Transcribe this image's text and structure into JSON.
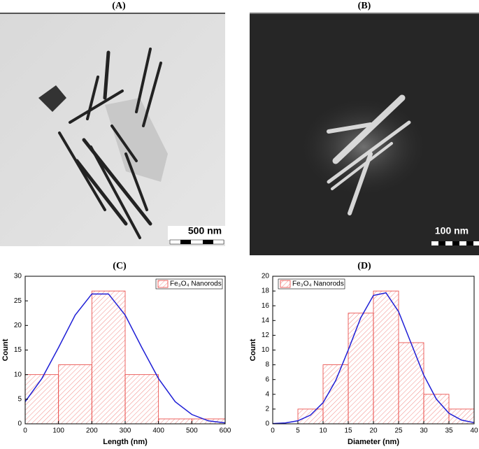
{
  "panels": [
    {
      "title": "(A)",
      "scale_bar": "500 nm"
    },
    {
      "title": "(B)",
      "scale_bar": "100 nm"
    }
  ],
  "chart_data": [
    {
      "type": "histogram",
      "title": "(C)",
      "xlabel": "Length (nm)",
      "ylabel": "Count",
      "bins": [
        0,
        100,
        200,
        300,
        400,
        500,
        600
      ],
      "series": [
        {
          "name": "Fe₃O₄ Nanorods",
          "color": "#e8403c",
          "values": [
            10,
            12,
            27,
            10,
            1,
            1
          ]
        }
      ],
      "fit": {
        "color": "#1f1fd6",
        "x": [
          0,
          50,
          100,
          150,
          200,
          250,
          300,
          350,
          400,
          450,
          500,
          550,
          600
        ],
        "values": [
          4.5,
          9.2,
          15.5,
          22.1,
          26.4,
          26.4,
          22.1,
          15.5,
          9.2,
          4.5,
          1.9,
          0.6,
          0.2
        ]
      },
      "xlim": [
        0,
        600
      ],
      "ylim": [
        0,
        30
      ],
      "xticks": [
        0,
        100,
        200,
        300,
        400,
        500,
        600
      ],
      "yticks": [
        0,
        5,
        10,
        15,
        20,
        25,
        30
      ],
      "legend": "upper right"
    },
    {
      "type": "histogram",
      "title": "(D)",
      "xlabel": "Diameter (nm)",
      "ylabel": "Count",
      "bins": [
        0,
        5,
        10,
        15,
        20,
        25,
        30,
        35,
        40
      ],
      "series": [
        {
          "name": "Fe₃O₄ Nanorods",
          "color": "#e8403c",
          "values": [
            0,
            2,
            8,
            15,
            18,
            11,
            4,
            2
          ]
        }
      ],
      "fit": {
        "color": "#1f1fd6",
        "x": [
          0,
          2.5,
          5,
          7.5,
          10,
          12.5,
          15,
          17.5,
          20,
          22.5,
          25,
          27.5,
          30,
          32.5,
          35,
          37.5,
          40
        ],
        "values": [
          0.03,
          0.12,
          0.41,
          1.18,
          2.86,
          5.85,
          10.0,
          14.4,
          17.4,
          17.75,
          15.2,
          10.9,
          6.6,
          3.35,
          1.43,
          0.51,
          0.16
        ]
      },
      "xlim": [
        0,
        40
      ],
      "ylim": [
        0,
        20
      ],
      "xticks": [
        0,
        5,
        10,
        15,
        20,
        25,
        30,
        35,
        40
      ],
      "yticks": [
        0,
        2,
        4,
        6,
        8,
        10,
        12,
        14,
        16,
        18,
        20
      ],
      "legend": "upper left"
    }
  ]
}
